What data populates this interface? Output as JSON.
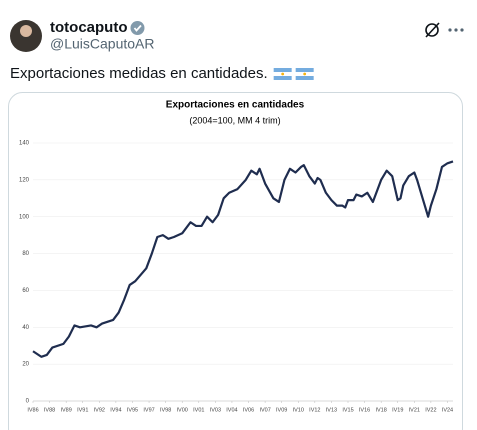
{
  "tweet": {
    "name": "totocaputo",
    "handle": "@LuisCaputoAR",
    "text": "Exportaciones medidas en cantidades."
  },
  "chart_data": {
    "type": "line",
    "title": "Exportaciones en cantidades",
    "subtitle": "(2004=100, MM 4 trim)",
    "color": "#1f2d4f",
    "x": [
      1986.75,
      1987.5,
      1988,
      1988.5,
      1989.5,
      1990,
      1990.5,
      1991,
      1992,
      1992.5,
      1993,
      1994,
      1994.5,
      1995,
      1995.5,
      1996,
      1997,
      1997.5,
      1998,
      1998.5,
      1999,
      1999.5,
      2000.25,
      2001,
      2001.5,
      2002,
      2002.5,
      2003,
      2003.5,
      2004,
      2004.5,
      2005.25,
      2006,
      2006.5,
      2007,
      2007.25,
      2007.75,
      2008.5,
      2009,
      2009.5,
      2010,
      2010.5,
      2011,
      2011.25,
      2011.75,
      2012.25,
      2012.5,
      2012.75,
      2013.25,
      2013.75,
      2014.25,
      2014.75,
      2015,
      2015.25,
      2015.75,
      2016,
      2016.5,
      2017,
      2017.5,
      2017.75,
      2018.25,
      2018.75,
      2019.25,
      2019.75,
      2020,
      2020.25,
      2020.75,
      2021.25,
      2021.5,
      2022,
      2022.5,
      2022.75,
      2023.25,
      2023.75,
      2024.25,
      2024.75
    ],
    "values": [
      27,
      24,
      25,
      29,
      31,
      35,
      41,
      40,
      41,
      40,
      42,
      44,
      48,
      55,
      63,
      65,
      72,
      80,
      89,
      90,
      88,
      89,
      91,
      97,
      95,
      95,
      100,
      97,
      101,
      110,
      113,
      115,
      120,
      125,
      123,
      126,
      118,
      110,
      108,
      120,
      126,
      124,
      127,
      128,
      122,
      118,
      121,
      120,
      113,
      109,
      106,
      106,
      105,
      109,
      109,
      112,
      111,
      113,
      108,
      112,
      120,
      125,
      122,
      109,
      110,
      117,
      122,
      124,
      120,
      110,
      100,
      106,
      115,
      127,
      129,
      130
    ],
    "xlim": [
      1986.75,
      2024.75
    ],
    "xticks": [
      {
        "value": 1986.75,
        "label": "IV86"
      },
      {
        "value": 1988.25,
        "label": "IV88"
      },
      {
        "value": 1989.75,
        "label": "IV89"
      },
      {
        "value": 1991.25,
        "label": "IV91"
      },
      {
        "value": 1992.75,
        "label": "IV92"
      },
      {
        "value": 1994.25,
        "label": "IV94"
      },
      {
        "value": 1995.75,
        "label": "IV95"
      },
      {
        "value": 1997.25,
        "label": "IV97"
      },
      {
        "value": 1998.75,
        "label": "IV98"
      },
      {
        "value": 2000.25,
        "label": "IV00"
      },
      {
        "value": 2001.75,
        "label": "IV01"
      },
      {
        "value": 2003.25,
        "label": "IV03"
      },
      {
        "value": 2004.75,
        "label": "IV04"
      },
      {
        "value": 2006.25,
        "label": "IV06"
      },
      {
        "value": 2007.75,
        "label": "IV07"
      },
      {
        "value": 2009.25,
        "label": "IV09"
      },
      {
        "value": 2010.75,
        "label": "IV10"
      },
      {
        "value": 2012.25,
        "label": "IV12"
      },
      {
        "value": 2013.75,
        "label": "IV13"
      },
      {
        "value": 2015.25,
        "label": "IV15"
      },
      {
        "value": 2016.75,
        "label": "IV16"
      },
      {
        "value": 2018.25,
        "label": "IV18"
      },
      {
        "value": 2019.75,
        "label": "IV19"
      },
      {
        "value": 2021.25,
        "label": "IV21"
      },
      {
        "value": 2022.75,
        "label": "IV22"
      },
      {
        "value": 2024.25,
        "label": "IV24"
      }
    ],
    "ylim": [
      0,
      140
    ],
    "yticks": [
      0,
      20,
      40,
      60,
      80,
      100,
      120,
      140
    ],
    "grid": true
  }
}
